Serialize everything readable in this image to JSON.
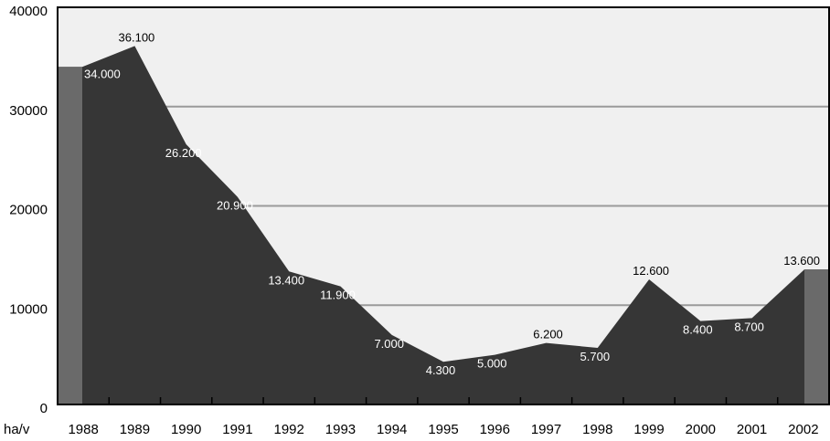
{
  "chart_data": {
    "type": "area",
    "title": "",
    "xlabel": "",
    "ylabel": "",
    "unit_label": "ha/v",
    "x": [
      "1988",
      "1989",
      "1990",
      "1991",
      "1992",
      "1993",
      "1994",
      "1995",
      "1996",
      "1997",
      "1998",
      "1999",
      "2000",
      "2001",
      "2002"
    ],
    "series": [
      {
        "values": [
          34000,
          36100,
          26200,
          20900,
          13400,
          11900,
          7000,
          4300,
          5000,
          6200,
          5700,
          12600,
          8400,
          8700,
          13600
        ],
        "data_labels": [
          "34.000",
          "36.100",
          "26.200",
          "20.900",
          "13.400",
          "11.900",
          "7.000",
          "4.300",
          "5.000",
          "6.200",
          "5.700",
          "12.600",
          "8.400",
          "8.700",
          "13.600"
        ]
      }
    ],
    "ylim": [
      0,
      40000
    ],
    "yticks": [
      0,
      10000,
      20000,
      30000,
      40000
    ],
    "ytick_labels": [
      "0",
      "10000",
      "20000",
      "30000",
      "40000"
    ],
    "grid": true,
    "colors": {
      "background": "#f0f0f0",
      "area": "#363636",
      "end_bars": "#6a6a6a",
      "gridline": "#9a9a9a"
    }
  }
}
